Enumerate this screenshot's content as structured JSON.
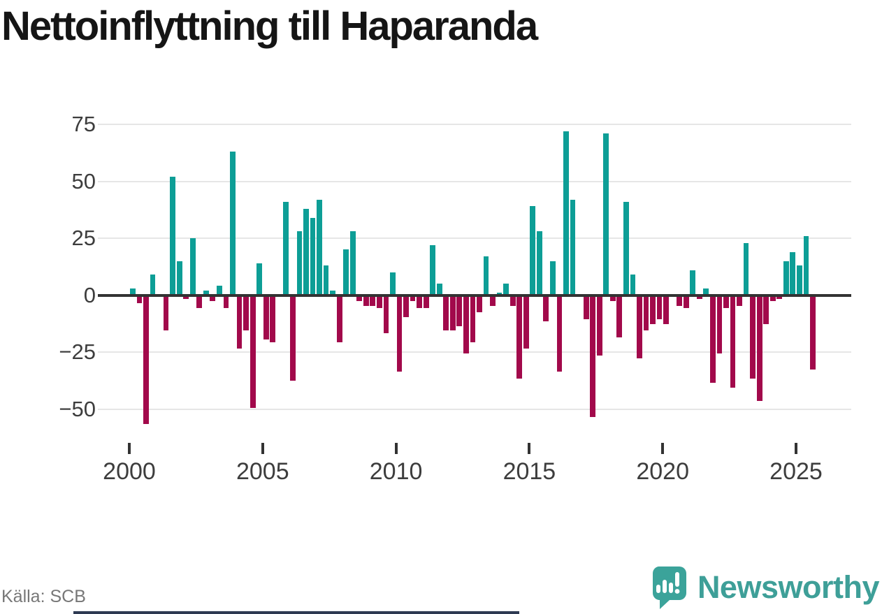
{
  "title": "Nettoinflyttning till Haparanda",
  "footer": {
    "source": "Källa: SCB",
    "brand": "Newsworthy"
  },
  "icons": {
    "logo": "newsworthy-speech-bubble-barchart-icon"
  },
  "colors": {
    "positive": "#0d9e96",
    "negative": "#a2094b",
    "gridline": "#e6e6e6",
    "axis": "#333333",
    "title_text": "#151515",
    "tick_text": "#3d3d3d",
    "source_text": "#777777",
    "brand_teal": "#3e9f98",
    "progress_bar": "#2e3a52"
  },
  "chart_data": {
    "type": "bar",
    "title": "Nettoinflyttning till Haparanda",
    "xlabel": "",
    "ylabel": "",
    "frequency": "quarterly",
    "start": "2000Q1",
    "end": "2025Q3",
    "ylim": [
      -60,
      80
    ],
    "grid": true,
    "legend": "none",
    "y_ticks": [
      {
        "v": 75,
        "label": "75"
      },
      {
        "v": 50,
        "label": "50"
      },
      {
        "v": 25,
        "label": "25"
      },
      {
        "v": 0,
        "label": "0"
      },
      {
        "v": -25,
        "label": "−25"
      },
      {
        "v": -50,
        "label": "−50"
      }
    ],
    "x_ticks": [
      {
        "year": 2000,
        "label": "2000"
      },
      {
        "year": 2005,
        "label": "2005"
      },
      {
        "year": 2010,
        "label": "2010"
      },
      {
        "year": 2015,
        "label": "2015"
      },
      {
        "year": 2020,
        "label": "2020"
      },
      {
        "year": 2025,
        "label": "2025"
      }
    ],
    "values": [
      3,
      -3,
      -56,
      9,
      0,
      -15,
      52,
      15,
      -1,
      25,
      -5,
      2,
      -2,
      4,
      -5,
      63,
      -23,
      -15,
      -49,
      14,
      -19,
      -20,
      0,
      41,
      -37,
      28,
      38,
      34,
      42,
      13,
      2,
      -20,
      20,
      28,
      -2,
      -4,
      -4,
      -5,
      -16,
      10,
      -33,
      -9,
      -2,
      -5,
      -5,
      22,
      5,
      -15,
      -15,
      -13,
      -25,
      -20,
      -7,
      17,
      -4,
      1,
      5,
      -4,
      -36,
      -23,
      39,
      28,
      -11,
      15,
      -33,
      72,
      42,
      0,
      -10,
      -53,
      -26,
      71,
      -2,
      -18,
      41,
      9,
      -27,
      -15,
      -12,
      -10,
      -12,
      0,
      -4,
      -5,
      11,
      -1,
      3,
      -38,
      -25,
      -5,
      -40,
      -4,
      23,
      -36,
      -46,
      -12,
      -2,
      -1,
      15,
      19,
      13,
      26,
      -32
    ]
  }
}
